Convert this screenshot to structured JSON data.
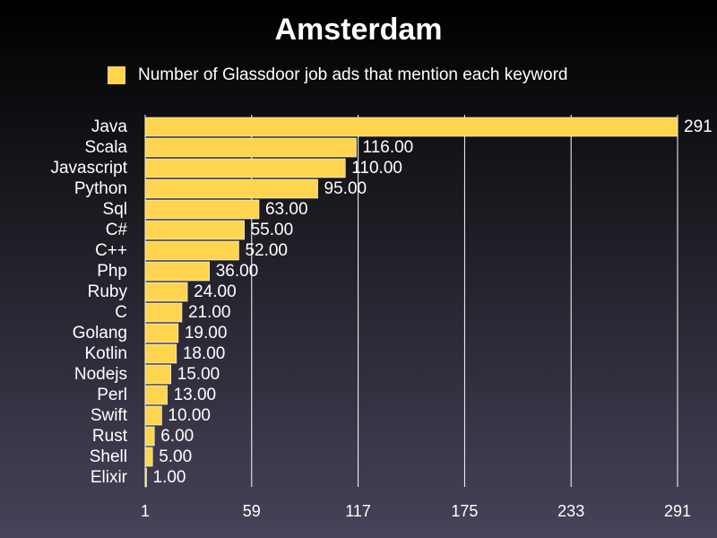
{
  "chart_data": {
    "type": "bar",
    "orientation": "horizontal",
    "title": "Amsterdam",
    "legend": {
      "position": "top-left",
      "entries": [
        "Number of Glassdoor job ads that mention each keyword"
      ]
    },
    "categories": [
      "Java",
      "Scala",
      "Javascript",
      "Python",
      "Sql",
      "C#",
      "C++",
      "Php",
      "Ruby",
      "C",
      "Golang",
      "Kotlin",
      "Nodejs",
      "Perl",
      "Swift",
      "Rust",
      "Shell",
      "Elixir"
    ],
    "series": [
      {
        "name": "Number of Glassdoor job ads that mention each keyword",
        "values": [
          291,
          116,
          110,
          95,
          63,
          55,
          52,
          36,
          24,
          21,
          19,
          18,
          15,
          13,
          10,
          6,
          5,
          1
        ],
        "value_labels": [
          "291",
          "116.00",
          "110.00",
          "95.00",
          "63.00",
          "55.00",
          "52.00",
          "36.00",
          "24.00",
          "21.00",
          "19.00",
          "18.00",
          "15.00",
          "13.00",
          "10.00",
          "6.00",
          "5.00",
          "1.00"
        ]
      }
    ],
    "xlim": [
      1,
      291
    ],
    "xticks": [
      "1",
      "59",
      "117",
      "175",
      "233",
      "291"
    ],
    "grid": true,
    "colors": {
      "bar": "#ffd54f",
      "bar_edge": "#ffffff",
      "grid": "#ffffff",
      "text": "#ffffff"
    }
  }
}
